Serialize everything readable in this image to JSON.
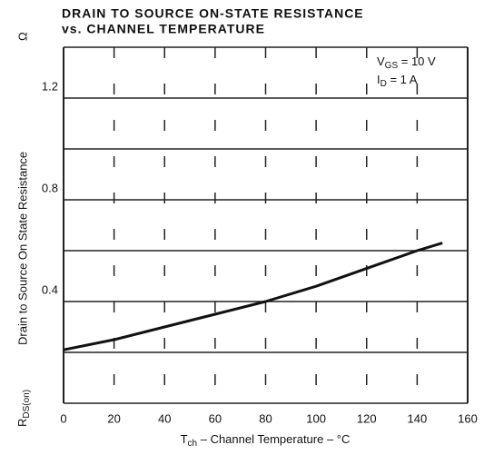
{
  "chart_data": {
    "type": "line",
    "title": "DRAIN TO SOURCE ON-STATE RESISTANCE",
    "subtitle": "vs. CHANNEL TEMPERATURE",
    "x_label": {
      "symbol": "T",
      "sub": "ch",
      "text": " – Channel Temperature – °C"
    },
    "y_label": {
      "symbol": "R",
      "sub": "DS(on)",
      "text": "Drain to Source On State Resistance",
      "unit": "Ω"
    },
    "annotation": [
      {
        "symbol": "V",
        "sub": "GS",
        "text": " = 10 V"
      },
      {
        "symbol": "I",
        "sub": "D",
        "text": " = 1 A"
      }
    ],
    "x": [
      0,
      20,
      40,
      60,
      80,
      100,
      120,
      140,
      150
    ],
    "series": [
      {
        "name": "RDS(on)",
        "color": "#111111",
        "values": [
          0.21,
          0.25,
          0.3,
          0.35,
          0.4,
          0.46,
          0.53,
          0.6,
          0.63
        ]
      }
    ],
    "xlim": [
      0,
      160
    ],
    "xticks": [
      0,
      20,
      40,
      60,
      80,
      100,
      120,
      140,
      160
    ],
    "ylim": [
      0,
      1.4
    ],
    "yticks": [
      0.4,
      0.8,
      1.2
    ],
    "ygrid": [
      0,
      0.2,
      0.4,
      0.6,
      0.8,
      1.0,
      1.2,
      1.4
    ],
    "grid": true
  }
}
